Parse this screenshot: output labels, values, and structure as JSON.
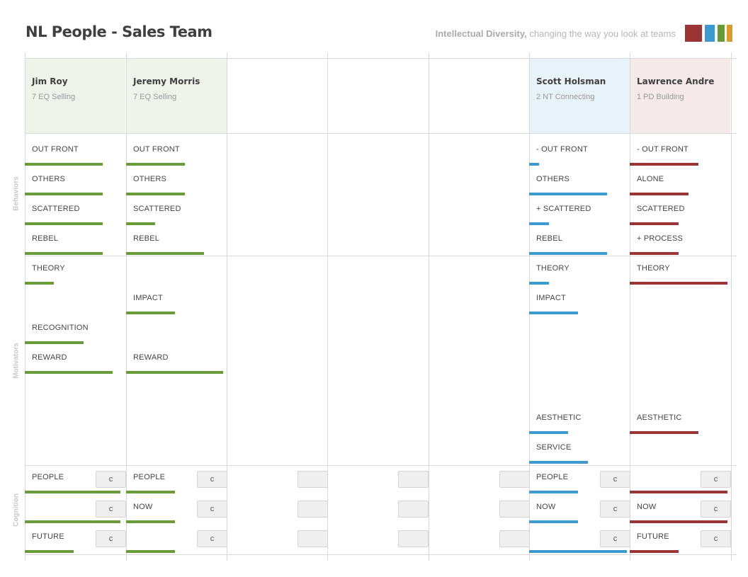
{
  "header": {
    "title": "NL People - Sales Team",
    "tagline_bold": "Intellectual Diversity,",
    "tagline_rest": " changing the way you look at teams"
  },
  "logo": {
    "colors": [
      "#9b3434",
      "#3c9ad0",
      "#6a9b3a",
      "#d89c2c"
    ]
  },
  "sections": {
    "behaviors": "Behaviors",
    "motivators": "Motivators",
    "cognition": "Cognition"
  },
  "cognition_button_label": "c",
  "columns": [
    {
      "name": "Jim Roy",
      "subtitle": "7 EQ Selling",
      "header_bg": "#eef4ea",
      "color": "#6a9b3a",
      "behaviors": [
        {
          "label": "OUT FRONT",
          "level": 0.8
        },
        {
          "label": "OTHERS",
          "level": 0.8
        },
        {
          "label": "SCATTERED",
          "level": 0.8
        },
        {
          "label": "REBEL",
          "level": 0.8
        }
      ],
      "motivators": [
        {
          "label": "THEORY",
          "level": 0.3
        },
        {
          "label": "",
          "level": 0
        },
        {
          "label": "RECOGNITION",
          "level": 0.6
        },
        {
          "label": "REWARD",
          "level": 0.9
        },
        {
          "label": "",
          "level": 0
        },
        {
          "label": "",
          "level": 0
        }
      ],
      "cognition": [
        {
          "label": "PEOPLE",
          "level": 0.98
        },
        {
          "label": "",
          "level": 0.98
        },
        {
          "label": "FUTURE",
          "level": 0.5
        }
      ]
    },
    {
      "name": "Jeremy Morris",
      "subtitle": "7 EQ Selling",
      "header_bg": "#eef4ea",
      "color": "#6a9b3a",
      "behaviors": [
        {
          "label": "OUT FRONT",
          "level": 0.6
        },
        {
          "label": "OTHERS",
          "level": 0.6
        },
        {
          "label": "SCATTERED",
          "level": 0.3
        },
        {
          "label": "REBEL",
          "level": 0.8
        }
      ],
      "motivators": [
        {
          "label": "",
          "level": 0
        },
        {
          "label": "IMPACT",
          "level": 0.5
        },
        {
          "label": "",
          "level": 0
        },
        {
          "label": "REWARD",
          "level": 0.99
        },
        {
          "label": "",
          "level": 0
        },
        {
          "label": "",
          "level": 0
        }
      ],
      "cognition": [
        {
          "label": "PEOPLE",
          "level": 0.5
        },
        {
          "label": "NOW",
          "level": 0.5
        },
        {
          "label": "",
          "level": 0.5
        }
      ]
    },
    {
      "name": "",
      "subtitle": "",
      "header_bg": "#ffffff",
      "color": "#cccccc",
      "behaviors": [],
      "motivators": [],
      "cognition": [
        {
          "label": "",
          "level": 0
        },
        {
          "label": "",
          "level": 0
        },
        {
          "label": "",
          "level": 0
        }
      ]
    },
    {
      "name": "",
      "subtitle": "",
      "header_bg": "#ffffff",
      "color": "#cccccc",
      "behaviors": [],
      "motivators": [],
      "cognition": [
        {
          "label": "",
          "level": 0
        },
        {
          "label": "",
          "level": 0
        },
        {
          "label": "",
          "level": 0
        }
      ]
    },
    {
      "name": "",
      "subtitle": "",
      "header_bg": "#ffffff",
      "color": "#cccccc",
      "behaviors": [],
      "motivators": [],
      "cognition": [
        {
          "label": "",
          "level": 0
        },
        {
          "label": "",
          "level": 0
        },
        {
          "label": "",
          "level": 0
        }
      ]
    },
    {
      "name": "Scott Holsman",
      "subtitle": "2 NT Connecting",
      "header_bg": "#e8f3f9",
      "color": "#3c9ad0",
      "behaviors": [
        {
          "label": "- OUT FRONT",
          "level": 0.1
        },
        {
          "label": "OTHERS",
          "level": 0.8
        },
        {
          "label": "+ SCATTERED",
          "level": 0.2
        },
        {
          "label": "REBEL",
          "level": 0.8
        }
      ],
      "motivators": [
        {
          "label": "THEORY",
          "level": 0.2
        },
        {
          "label": "IMPACT",
          "level": 0.5
        },
        {
          "label": "",
          "level": 0
        },
        {
          "label": "",
          "level": 0
        },
        {
          "label": "AESTHETIC",
          "level": 0.4
        },
        {
          "label": "SERVICE",
          "level": 0.6
        }
      ],
      "cognition": [
        {
          "label": "PEOPLE",
          "level": 0.5
        },
        {
          "label": "NOW",
          "level": 0.5
        },
        {
          "label": "",
          "level": 1.0
        }
      ]
    },
    {
      "name": "Lawrence Andre",
      "subtitle": "1 PD Building",
      "header_bg": "#f6e9e9",
      "color": "#9b3434",
      "behaviors": [
        {
          "label": "- OUT FRONT",
          "level": 0.7
        },
        {
          "label": "ALONE",
          "level": 0.6
        },
        {
          "label": "SCATTERED",
          "level": 0.5
        },
        {
          "label": "+ PROCESS",
          "level": 0.5
        }
      ],
      "motivators": [
        {
          "label": "THEORY",
          "level": 1.0
        },
        {
          "label": "",
          "level": 0
        },
        {
          "label": "",
          "level": 0
        },
        {
          "label": "",
          "level": 0
        },
        {
          "label": "AESTHETIC",
          "level": 0.7
        },
        {
          "label": "",
          "level": 0
        }
      ],
      "cognition": [
        {
          "label": "",
          "level": 1.0
        },
        {
          "label": "NOW",
          "level": 1.0
        },
        {
          "label": "FUTURE",
          "level": 0.5
        }
      ]
    }
  ]
}
